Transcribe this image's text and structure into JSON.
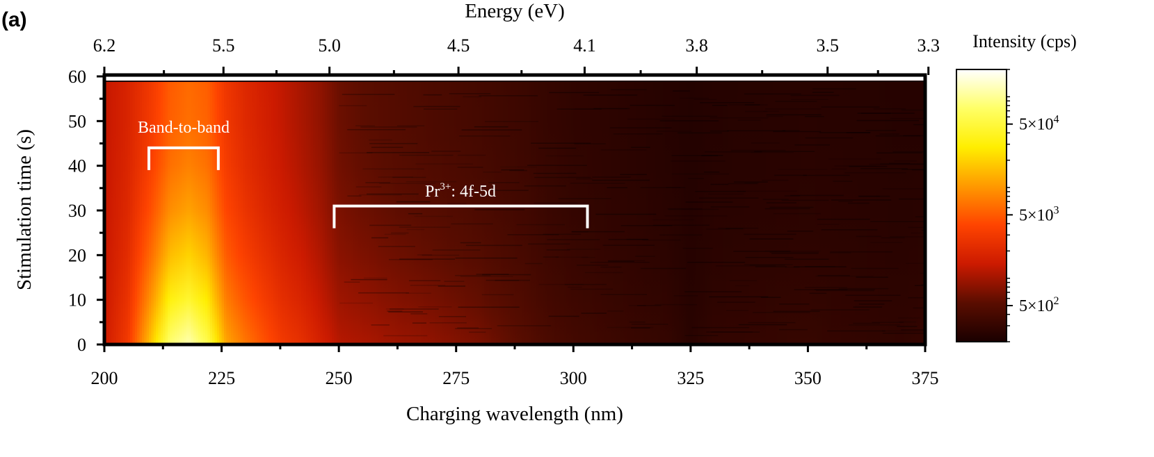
{
  "panel_label": "(a)",
  "chart_data": {
    "type": "heatmap",
    "xlabel": "Charging wavelength (nm)",
    "x2label": "Energy (eV)",
    "ylabel": "Stimulation time (s)",
    "xlim": [
      200,
      375
    ],
    "ylim": [
      0,
      60
    ],
    "xticks": [
      200,
      225,
      250,
      275,
      300,
      325,
      350,
      375
    ],
    "yticks": [
      0,
      10,
      20,
      30,
      40,
      50,
      60
    ],
    "x2_ticks": [
      {
        "label": "6.2",
        "wavelength": 200
      },
      {
        "label": "5.5",
        "wavelength": 225.4
      },
      {
        "label": "5.0",
        "wavelength": 248
      },
      {
        "label": "4.5",
        "wavelength": 275.5
      },
      {
        "label": "4.1",
        "wavelength": 302.4
      },
      {
        "label": "3.8",
        "wavelength": 326.3
      },
      {
        "label": "3.5",
        "wavelength": 354.2
      },
      {
        "label": "3.3",
        "wavelength": 375.7
      }
    ],
    "colorbar": {
      "label": "Intensity (cps)",
      "scale": "log",
      "range": [
        200,
        200000
      ],
      "ticks": [
        {
          "value": 500,
          "base": "5×10",
          "exp": "2"
        },
        {
          "value": 5000,
          "base": "5×10",
          "exp": "3"
        },
        {
          "value": 50000,
          "base": "5×10",
          "exp": "4"
        }
      ],
      "colors": [
        "#1a0000",
        "#5a0d00",
        "#cc1a00",
        "#ff4400",
        "#ff9900",
        "#ffee00",
        "#ffff66",
        "#ffffff"
      ]
    },
    "profile": {
      "wavelength": [
        200,
        205,
        210,
        214,
        218,
        222,
        226,
        230,
        234,
        238,
        242,
        246,
        250,
        255,
        262,
        270,
        280,
        290,
        295,
        300,
        310,
        320,
        325,
        330,
        340,
        350,
        360,
        370,
        375
      ],
      "intensity_t0": [
        1500,
        3000,
        18000,
        80000,
        120000,
        60000,
        12000,
        7000,
        4500,
        3000,
        2400,
        1700,
        1200,
        1100,
        950,
        850,
        700,
        500,
        420,
        380,
        330,
        300,
        250,
        290,
        300,
        310,
        290,
        280,
        300
      ],
      "intensity_t60": [
        1300,
        1800,
        3000,
        5000,
        6000,
        5200,
        2800,
        2000,
        1600,
        1300,
        1050,
        850,
        620,
        540,
        480,
        430,
        380,
        330,
        300,
        280,
        260,
        240,
        230,
        240,
        245,
        250,
        245,
        240,
        240
      ]
    },
    "annotations": [
      {
        "text": "Band-to-band",
        "x_range": [
          209.5,
          224.3
        ],
        "y_at": 44
      },
      {
        "sup_text": "Pr",
        "sup": "3+",
        "suffix": ": 4f-5d",
        "x_range": [
          249,
          303
        ],
        "y_at": 31
      }
    ]
  }
}
